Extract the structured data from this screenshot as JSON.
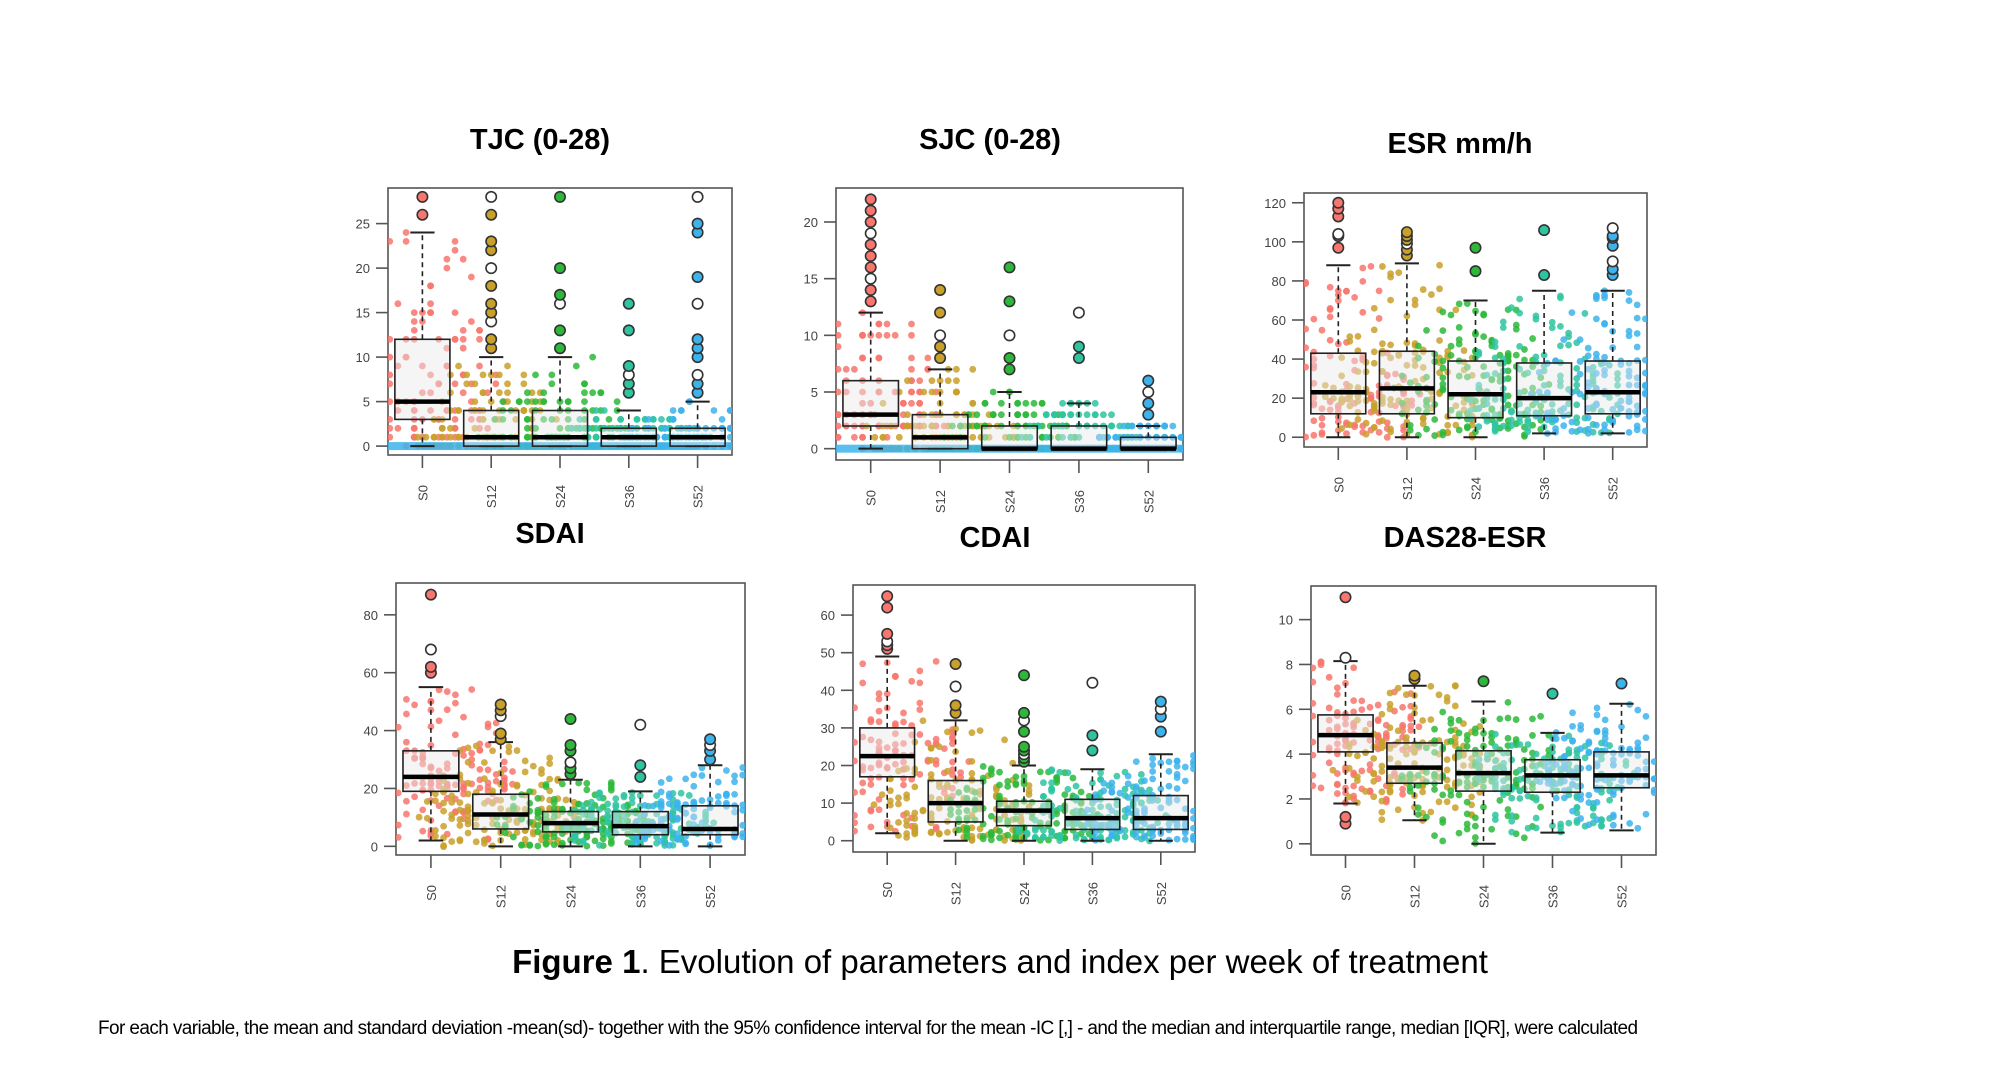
{
  "figure": {
    "caption_bold": "Figure 1",
    "caption_rest": ". Evolution of parameters and index per week of treatment",
    "note": "For each variable, the mean and standard deviation -mean(sd)- together with the 95% confidence interval for the mean -IC [,] - and the median and interquartile range, median [IQR], were calculated"
  },
  "palette": {
    "S0": "#F8766D",
    "S12": "#C9A02A",
    "S24": "#2DB83A",
    "S36": "#2EC4A0",
    "S52": "#3DB3EC",
    "box_fill": "#e8e8ec",
    "frame": "#555555"
  },
  "chart_data": [
    {
      "id": "tjc",
      "type": "box",
      "title": "TJC (0-28)",
      "categories": [
        "S0",
        "S12",
        "S24",
        "S36",
        "S52"
      ],
      "yticks": [
        0,
        5,
        10,
        15,
        20,
        25
      ],
      "ylim": [
        -1,
        29
      ],
      "grid": false,
      "discrete": true,
      "boxes": [
        {
          "cat": "S0",
          "whisker_low": 0,
          "q1": 3,
          "median": 5,
          "q3": 12,
          "whisker_high": 24,
          "outliers": [
            26,
            28
          ]
        },
        {
          "cat": "S12",
          "whisker_low": 0,
          "q1": 0,
          "median": 1,
          "q3": 4,
          "whisker_high": 10,
          "outliers": [
            11,
            12,
            14,
            15,
            16,
            18,
            20,
            22,
            23,
            26,
            28
          ]
        },
        {
          "cat": "S24",
          "whisker_low": 0,
          "q1": 0,
          "median": 1,
          "q3": 4,
          "whisker_high": 10,
          "outliers": [
            11,
            13,
            16,
            17,
            20,
            28
          ]
        },
        {
          "cat": "S36",
          "whisker_low": 0,
          "q1": 0,
          "median": 1,
          "q3": 2,
          "whisker_high": 4,
          "outliers": [
            6,
            7,
            8,
            9,
            13,
            16
          ]
        },
        {
          "cat": "S52",
          "whisker_low": 0,
          "q1": 0,
          "median": 1,
          "q3": 2,
          "whisker_high": 5,
          "outliers": [
            6,
            7,
            8,
            10,
            11,
            12,
            16,
            19,
            24,
            25,
            28
          ]
        }
      ]
    },
    {
      "id": "sjc",
      "type": "box",
      "title": "SJC (0-28)",
      "categories": [
        "S0",
        "S12",
        "S24",
        "S36",
        "S52"
      ],
      "yticks": [
        0,
        5,
        10,
        15,
        20
      ],
      "ylim": [
        -1,
        23
      ],
      "grid": false,
      "discrete": true,
      "boxes": [
        {
          "cat": "S0",
          "whisker_low": 0,
          "q1": 2,
          "median": 3,
          "q3": 6,
          "whisker_high": 12,
          "outliers": [
            13,
            14,
            15,
            16,
            17,
            18,
            19,
            20,
            21,
            22
          ]
        },
        {
          "cat": "S12",
          "whisker_low": 0,
          "q1": 0,
          "median": 1,
          "q3": 3,
          "whisker_high": 7,
          "outliers": [
            8,
            9,
            10,
            12,
            14
          ]
        },
        {
          "cat": "S24",
          "whisker_low": 0,
          "q1": 0,
          "median": 0,
          "q3": 2,
          "whisker_high": 5,
          "outliers": [
            7,
            8,
            10,
            13,
            16
          ]
        },
        {
          "cat": "S36",
          "whisker_low": 0,
          "q1": 0,
          "median": 0,
          "q3": 2,
          "whisker_high": 4,
          "outliers": [
            8,
            9,
            12
          ]
        },
        {
          "cat": "S52",
          "whisker_low": 0,
          "q1": 0,
          "median": 0,
          "q3": 1,
          "whisker_high": 2,
          "outliers": [
            3,
            4,
            5,
            6
          ]
        }
      ]
    },
    {
      "id": "esr",
      "type": "box",
      "title": "ESR mm/h",
      "categories": [
        "S0",
        "S12",
        "S24",
        "S36",
        "S52"
      ],
      "yticks": [
        0,
        20,
        40,
        60,
        80,
        100,
        120
      ],
      "ylim": [
        -5,
        125
      ],
      "grid": false,
      "discrete": false,
      "boxes": [
        {
          "cat": "S0",
          "whisker_low": 0,
          "q1": 12,
          "median": 23,
          "q3": 43,
          "whisker_high": 88,
          "outliers": [
            97,
            103,
            104,
            113,
            117,
            120
          ]
        },
        {
          "cat": "S12",
          "whisker_low": 0,
          "q1": 12,
          "median": 25,
          "q3": 44,
          "whisker_high": 89,
          "outliers": [
            93,
            96,
            99,
            101,
            103,
            105
          ]
        },
        {
          "cat": "S24",
          "whisker_low": 0,
          "q1": 10,
          "median": 22,
          "q3": 39,
          "whisker_high": 70,
          "outliers": [
            85,
            97
          ]
        },
        {
          "cat": "S36",
          "whisker_low": 2,
          "q1": 11,
          "median": 20,
          "q3": 38,
          "whisker_high": 75,
          "outliers": [
            83,
            106
          ]
        },
        {
          "cat": "S52",
          "whisker_low": 2,
          "q1": 12,
          "median": 23,
          "q3": 39,
          "whisker_high": 75,
          "outliers": [
            83,
            86,
            90,
            98,
            102,
            103,
            107
          ]
        }
      ]
    },
    {
      "id": "sdai",
      "type": "box",
      "title": "SDAI",
      "categories": [
        "S0",
        "S12",
        "S24",
        "S36",
        "S52"
      ],
      "yticks": [
        0,
        20,
        40,
        60,
        80
      ],
      "ylim": [
        -3,
        91
      ],
      "grid": false,
      "discrete": false,
      "boxes": [
        {
          "cat": "S0",
          "whisker_low": 2,
          "q1": 19,
          "median": 24,
          "q3": 33,
          "whisker_high": 55,
          "outliers": [
            60,
            62,
            68,
            87
          ]
        },
        {
          "cat": "S12",
          "whisker_low": 0,
          "q1": 6,
          "median": 11,
          "q3": 18,
          "whisker_high": 36,
          "outliers": [
            37,
            39,
            45,
            47,
            49
          ]
        },
        {
          "cat": "S24",
          "whisker_low": 0,
          "q1": 5,
          "median": 8,
          "q3": 12,
          "whisker_high": 23,
          "outliers": [
            25,
            27,
            29,
            33,
            35,
            44
          ]
        },
        {
          "cat": "S36",
          "whisker_low": 0,
          "q1": 4,
          "median": 7,
          "q3": 12,
          "whisker_high": 19,
          "outliers": [
            24,
            28,
            42
          ]
        },
        {
          "cat": "S52",
          "whisker_low": 0,
          "q1": 4,
          "median": 6,
          "q3": 14,
          "whisker_high": 28,
          "outliers": [
            30,
            33,
            35,
            37
          ]
        }
      ]
    },
    {
      "id": "cdai",
      "type": "box",
      "title": "CDAI",
      "categories": [
        "S0",
        "S12",
        "S24",
        "S36",
        "S52"
      ],
      "yticks": [
        0,
        10,
        20,
        30,
        40,
        50,
        60
      ],
      "ylim": [
        -3,
        68
      ],
      "grid": false,
      "discrete": false,
      "boxes": [
        {
          "cat": "S0",
          "whisker_low": 2,
          "q1": 17,
          "median": 22.5,
          "q3": 30,
          "whisker_high": 49,
          "outliers": [
            51,
            52,
            53,
            55,
            62,
            65
          ]
        },
        {
          "cat": "S12",
          "whisker_low": 0,
          "q1": 5,
          "median": 10,
          "q3": 16,
          "whisker_high": 32,
          "outliers": [
            34,
            36,
            41,
            47
          ]
        },
        {
          "cat": "S24",
          "whisker_low": 0,
          "q1": 4,
          "median": 8,
          "q3": 10.5,
          "whisker_high": 20,
          "outliers": [
            21,
            22,
            23,
            24,
            25,
            29,
            32,
            34,
            44
          ]
        },
        {
          "cat": "S36",
          "whisker_low": 0,
          "q1": 3,
          "median": 6,
          "q3": 11,
          "whisker_high": 19,
          "outliers": [
            24,
            28,
            42
          ]
        },
        {
          "cat": "S52",
          "whisker_low": 0,
          "q1": 3,
          "median": 6,
          "q3": 12,
          "whisker_high": 23,
          "outliers": [
            29,
            33,
            35,
            37
          ]
        }
      ]
    },
    {
      "id": "das28",
      "type": "box",
      "title": "DAS28-ESR",
      "categories": [
        "S0",
        "S12",
        "S24",
        "S36",
        "S52"
      ],
      "yticks": [
        0,
        2,
        4,
        6,
        8,
        10
      ],
      "ylim": [
        -0.5,
        11.5
      ],
      "grid": false,
      "discrete": false,
      "boxes": [
        {
          "cat": "S0",
          "whisker_low": 1.8,
          "q1": 4.1,
          "median": 4.85,
          "q3": 5.75,
          "whisker_high": 8.15,
          "outliers": [
            0.9,
            1.2,
            8.3,
            11.0
          ]
        },
        {
          "cat": "S12",
          "whisker_low": 1.05,
          "q1": 2.7,
          "median": 3.4,
          "q3": 4.5,
          "whisker_high": 7.05,
          "outliers": [
            7.35,
            7.5
          ]
        },
        {
          "cat": "S24",
          "whisker_low": 0,
          "q1": 2.35,
          "median": 3.15,
          "q3": 4.15,
          "whisker_high": 6.35,
          "outliers": [
            7.25
          ]
        },
        {
          "cat": "S36",
          "whisker_low": 0.5,
          "q1": 2.3,
          "median": 3.05,
          "q3": 3.75,
          "whisker_high": 4.95,
          "outliers": [
            6.7
          ]
        },
        {
          "cat": "S52",
          "whisker_low": 0.6,
          "q1": 2.5,
          "median": 3.05,
          "q3": 4.1,
          "whisker_high": 6.25,
          "outliers": [
            7.15
          ]
        }
      ]
    }
  ]
}
